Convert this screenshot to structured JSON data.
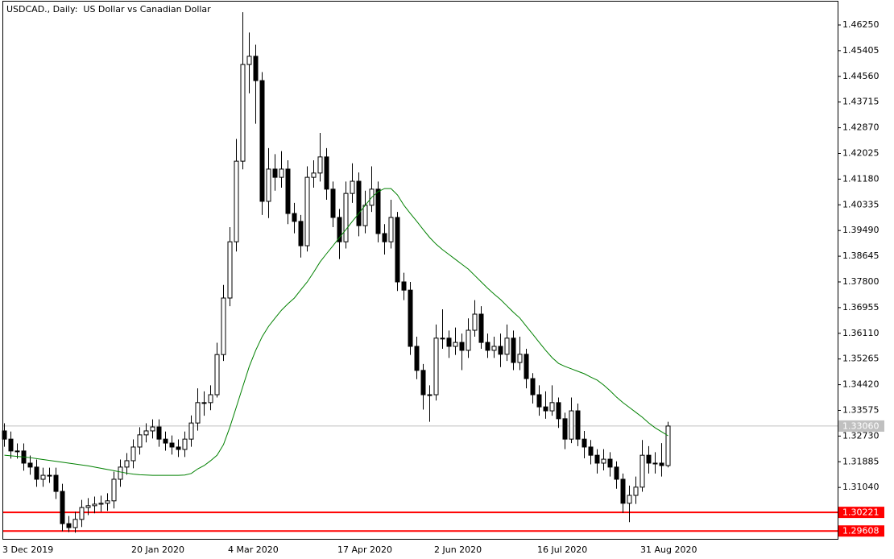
{
  "chart_data": {
    "type": "candlestick",
    "title": "USDCAD., Daily:  US Dollar vs Canadian Dollar",
    "categories": [
      "3 Dec 2019",
      null,
      null,
      null,
      null,
      null,
      null,
      null,
      null,
      null,
      null,
      null,
      null,
      null,
      null,
      null,
      null,
      null,
      null,
      null,
      "20 Jan 2020",
      null,
      null,
      null,
      null,
      null,
      null,
      null,
      null,
      null,
      null,
      null,
      null,
      null,
      null,
      "4 Mar 2020",
      null,
      null,
      null,
      null,
      null,
      null,
      null,
      null,
      null,
      null,
      null,
      null,
      null,
      null,
      null,
      null,
      "17 Apr 2020",
      null,
      null,
      null,
      null,
      null,
      null,
      null,
      null,
      null,
      null,
      null,
      null,
      null,
      null,
      "2 Jun 2020",
      null,
      null,
      null,
      null,
      null,
      null,
      null,
      null,
      null,
      null,
      null,
      null,
      null,
      null,
      null,
      "16 Jul 2020",
      null,
      null,
      null,
      null,
      null,
      null,
      null,
      null,
      null,
      null,
      null,
      null,
      null,
      null,
      null,
      "31 Aug 2020",
      null,
      null,
      null,
      null
    ],
    "open": [
      1.329,
      1.3263,
      1.3224,
      1.3224,
      1.3184,
      1.3171,
      1.3131,
      1.3144,
      1.3144,
      1.3091,
      1.2985,
      1.2972,
      1.2999,
      1.3038,
      1.3044,
      1.3049,
      1.3052,
      1.306,
      1.3131,
      1.3171,
      1.3192,
      1.3237,
      1.3277,
      1.329,
      1.3303,
      1.3263,
      1.325,
      1.3237,
      1.3229,
      1.3263,
      1.3316,
      1.3383,
      1.3383,
      1.3409,
      1.3541,
      1.3727,
      1.3912,
      1.4177,
      1.4495,
      1.4522,
      1.4442,
      1.4045,
      1.4151,
      1.4124,
      1.4151,
      1.4005,
      1.3979,
      1.3899,
      1.4124,
      1.4138,
      1.4191,
      1.4085,
      1.3992,
      1.3912,
      1.4071,
      1.4111,
      1.3965,
      1.4032,
      1.4085,
      1.3939,
      1.3912,
      1.3992,
      1.378,
      1.3753,
      1.3568,
      1.3489,
      1.3409,
      1.3409,
      1.3595,
      1.3595,
      1.3568,
      1.3581,
      1.3555,
      1.3621,
      1.3674,
      1.3581,
      1.3555,
      1.3568,
      1.3542,
      1.3595,
      1.3515,
      1.3542,
      1.3462,
      1.3409,
      1.3369,
      1.3356,
      1.3383,
      1.333,
      1.3263,
      1.3356,
      1.3263,
      1.3237,
      1.321,
      1.3184,
      1.3197,
      1.3171,
      1.3131,
      1.3052,
      1.3078,
      1.3105,
      1.321,
      1.3184,
      1.3184,
      1.3176
    ],
    "high": [
      1.3315,
      1.3288,
      1.3249,
      1.3249,
      1.3209,
      1.3196,
      1.3169,
      1.3169,
      1.3169,
      1.3116,
      1.301,
      1.3024,
      1.3063,
      1.3069,
      1.3074,
      1.3077,
      1.3085,
      1.3156,
      1.3196,
      1.3217,
      1.3262,
      1.3302,
      1.3315,
      1.3328,
      1.3328,
      1.3288,
      1.3275,
      1.3262,
      1.3288,
      1.3341,
      1.343,
      1.342,
      1.344,
      1.358,
      1.377,
      1.396,
      1.425,
      1.4667,
      1.46,
      1.456,
      1.447,
      1.422,
      1.42,
      1.421,
      1.418,
      1.404,
      1.4,
      1.416,
      1.418,
      1.427,
      1.422,
      1.411,
      1.402,
      1.411,
      1.417,
      1.414,
      1.408,
      1.416,
      1.411,
      1.397,
      1.405,
      1.401,
      1.381,
      1.378,
      1.36,
      1.351,
      1.344,
      1.364,
      1.369,
      1.362,
      1.363,
      1.361,
      1.366,
      1.372,
      1.37,
      1.361,
      1.36,
      1.361,
      1.364,
      1.362,
      1.36,
      1.356,
      1.348,
      1.344,
      1.342,
      1.344,
      1.34,
      1.335,
      1.34,
      1.338,
      1.329,
      1.326,
      1.323,
      1.323,
      1.322,
      1.319,
      1.315,
      1.311,
      1.314,
      1.326,
      1.324,
      1.322,
      1.325,
      1.332
    ],
    "low": [
      1.3238,
      1.3199,
      1.3199,
      1.3159,
      1.3146,
      1.3106,
      1.3106,
      1.3119,
      1.3066,
      1.296,
      1.2957,
      1.2955,
      1.2974,
      1.3013,
      1.3019,
      1.3024,
      1.3027,
      1.3035,
      1.3106,
      1.3146,
      1.3167,
      1.3212,
      1.3252,
      1.3265,
      1.3238,
      1.3225,
      1.3212,
      1.3204,
      1.3204,
      1.3238,
      1.3291,
      1.334,
      1.3358,
      1.34,
      1.352,
      1.37,
      1.388,
      1.415,
      1.44,
      1.43,
      1.4,
      1.399,
      1.408,
      1.409,
      1.397,
      1.394,
      1.386,
      1.388,
      1.409,
      1.411,
      1.405,
      1.396,
      1.3855,
      1.389,
      1.404,
      1.393,
      1.394,
      1.401,
      1.391,
      1.387,
      1.389,
      1.375,
      1.372,
      1.354,
      1.346,
      1.336,
      1.332,
      1.339,
      1.356,
      1.353,
      1.354,
      1.349,
      1.353,
      1.36,
      1.356,
      1.353,
      1.353,
      1.35,
      1.352,
      1.349,
      1.349,
      1.343,
      1.338,
      1.334,
      1.333,
      1.334,
      1.33,
      1.323,
      1.325,
      1.324,
      1.32,
      1.318,
      1.315,
      1.316,
      1.314,
      1.31,
      1.302,
      1.299,
      1.305,
      1.309,
      1.315,
      1.315,
      1.314,
      1.317
    ],
    "close": [
      1.3263,
      1.3224,
      1.3224,
      1.3184,
      1.3171,
      1.3131,
      1.3144,
      1.3144,
      1.3091,
      1.2985,
      1.2972,
      1.2999,
      1.3038,
      1.3044,
      1.3049,
      1.3052,
      1.306,
      1.3131,
      1.3171,
      1.3192,
      1.3237,
      1.3277,
      1.329,
      1.3303,
      1.3263,
      1.325,
      1.3237,
      1.3229,
      1.3263,
      1.3316,
      1.3383,
      1.3383,
      1.3409,
      1.3541,
      1.3727,
      1.3912,
      1.4177,
      1.4495,
      1.4522,
      1.4442,
      1.4045,
      1.4151,
      1.4124,
      1.4151,
      1.4005,
      1.3979,
      1.3899,
      1.4124,
      1.4138,
      1.4191,
      1.4085,
      1.3992,
      1.3912,
      1.4071,
      1.4111,
      1.3965,
      1.4032,
      1.4085,
      1.3939,
      1.3912,
      1.3992,
      1.378,
      1.3753,
      1.3568,
      1.3489,
      1.3409,
      1.3409,
      1.3595,
      1.3595,
      1.3568,
      1.3581,
      1.3555,
      1.3621,
      1.3674,
      1.3581,
      1.3555,
      1.3568,
      1.3542,
      1.3595,
      1.3515,
      1.3542,
      1.3462,
      1.3409,
      1.3369,
      1.3356,
      1.3383,
      1.333,
      1.3263,
      1.3356,
      1.3263,
      1.3237,
      1.321,
      1.3184,
      1.3197,
      1.3171,
      1.3131,
      1.3052,
      1.3078,
      1.3105,
      1.321,
      1.3184,
      1.3184,
      1.3176,
      1.3306
    ],
    "up_color": "#ffffff",
    "down_color": "#000000",
    "ma": {
      "color": "#008000",
      "values": [
        1.321,
        1.3208,
        1.3206,
        1.3204,
        1.3202,
        1.3199,
        1.3196,
        1.3193,
        1.319,
        1.3187,
        1.3184,
        1.3181,
        1.3178,
        1.3175,
        1.3171,
        1.3167,
        1.3163,
        1.3159,
        1.3155,
        1.3151,
        1.3148,
        1.3146,
        1.3145,
        1.3144,
        1.3144,
        1.3144,
        1.3144,
        1.3144,
        1.3145,
        1.315,
        1.3165,
        1.3176,
        1.3192,
        1.321,
        1.3245,
        1.3303,
        1.3369,
        1.3436,
        1.3502,
        1.3555,
        1.36,
        1.3634,
        1.3661,
        1.3687,
        1.3708,
        1.3727,
        1.3754,
        1.378,
        1.3812,
        1.3846,
        1.3873,
        1.3899,
        1.3926,
        1.3952,
        1.3979,
        1.4005,
        1.4032,
        1.4058,
        1.4077,
        1.4087,
        1.4087,
        1.4066,
        1.4032,
        1.4005,
        1.3979,
        1.3952,
        1.3926,
        1.3904,
        1.3886,
        1.387,
        1.3854,
        1.3838,
        1.3822,
        1.3801,
        1.378,
        1.3759,
        1.374,
        1.3722,
        1.3701,
        1.368,
        1.3661,
        1.3634,
        1.3608,
        1.3581,
        1.3555,
        1.3531,
        1.3512,
        1.3502,
        1.3494,
        1.3486,
        1.3478,
        1.3467,
        1.3457,
        1.3441,
        1.3422,
        1.3401,
        1.3383,
        1.3367,
        1.3351,
        1.3335,
        1.3316,
        1.33,
        1.3287,
        1.3274
      ]
    },
    "ylim": [
      1.29323,
      1.47018
    ],
    "yticks": [
      {
        "value": 1.4625,
        "label": "1.46250"
      },
      1.45405,
      {
        "value": 1.4456,
        "label": "1.44560"
      },
      1.43715,
      {
        "value": 1.4287,
        "label": "1.42870"
      },
      1.42025,
      {
        "value": 1.4118,
        "label": "1.41180"
      },
      1.40335,
      {
        "value": 1.3949,
        "label": "1.39490"
      },
      1.38645,
      {
        "value": 1.378,
        "label": "1.37800"
      },
      1.36955,
      {
        "value": 1.3611,
        "label": "1.36110"
      },
      1.35265,
      {
        "value": 1.3442,
        "label": "1.34420"
      },
      1.33575,
      {
        "value": 1.3273,
        "label": "1.32730"
      },
      1.31885,
      {
        "value": 1.3104,
        "label": "1.31040"
      }
    ],
    "current_price": {
      "value": 1.3306,
      "label": "1.33060",
      "color": "#c0c0c0"
    },
    "levels": [
      {
        "value": 1.30221,
        "label": "1.30221",
        "color": "#ff0000"
      },
      {
        "value": 1.29608,
        "label": "1.29608",
        "color": "#ff0000"
      }
    ]
  }
}
